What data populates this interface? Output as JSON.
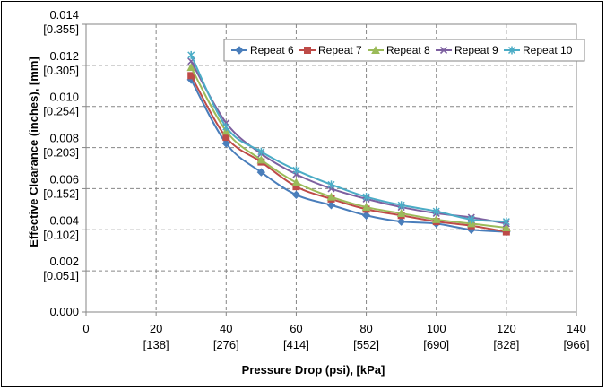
{
  "chart_data": {
    "type": "line",
    "title": "",
    "xlabel": "Pressure Drop (psi), [kPa]",
    "ylabel": "Effective Clearance (inches), [mm]",
    "xlim": [
      0,
      140
    ],
    "ylim": [
      0,
      0.014
    ],
    "grid": true,
    "legend_position": "top-right",
    "x_ticks": [
      {
        "value": 0,
        "label": "0",
        "sublabel": ""
      },
      {
        "value": 20,
        "label": "20",
        "sublabel": "[138]"
      },
      {
        "value": 40,
        "label": "40",
        "sublabel": "[276]"
      },
      {
        "value": 60,
        "label": "60",
        "sublabel": "[414]"
      },
      {
        "value": 80,
        "label": "80",
        "sublabel": "[552]"
      },
      {
        "value": 100,
        "label": "100",
        "sublabel": "[690]"
      },
      {
        "value": 120,
        "label": "120",
        "sublabel": "[828]"
      },
      {
        "value": 140,
        "label": "140",
        "sublabel": "[966]"
      }
    ],
    "y_ticks": [
      {
        "value": 0.0,
        "label": "0.000",
        "sublabel": ""
      },
      {
        "value": 0.002,
        "label": "0.002",
        "sublabel": "[0.051]"
      },
      {
        "value": 0.004,
        "label": "0.004",
        "sublabel": "[0.102]"
      },
      {
        "value": 0.006,
        "label": "0.006",
        "sublabel": "[0.152]"
      },
      {
        "value": 0.008,
        "label": "0.008",
        "sublabel": "[0.203]"
      },
      {
        "value": 0.01,
        "label": "0.010",
        "sublabel": "[0.254]"
      },
      {
        "value": 0.012,
        "label": "0.012",
        "sublabel": "[0.305]"
      },
      {
        "value": 0.014,
        "label": "0.014",
        "sublabel": "[0.355]"
      }
    ],
    "x": [
      30,
      40,
      50,
      60,
      70,
      80,
      90,
      100,
      110,
      120
    ],
    "series": [
      {
        "name": "Repeat 6",
        "color": "#4a7ebb",
        "marker": "diamond",
        "values": [
          0.0113,
          0.0082,
          0.0068,
          0.0057,
          0.0052,
          0.0047,
          0.0044,
          0.0043,
          0.004,
          0.0039
        ]
      },
      {
        "name": "Repeat 7",
        "color": "#be4b48",
        "marker": "square",
        "values": [
          0.0115,
          0.0085,
          0.0073,
          0.0061,
          0.0055,
          0.005,
          0.0047,
          0.0044,
          0.0042,
          0.0039
        ]
      },
      {
        "name": "Repeat 8",
        "color": "#9bbb59",
        "marker": "triangle",
        "values": [
          0.0119,
          0.0088,
          0.0074,
          0.0063,
          0.0056,
          0.0051,
          0.0048,
          0.0045,
          0.0043,
          0.0041
        ]
      },
      {
        "name": "Repeat 9",
        "color": "#7d60a0",
        "marker": "x",
        "values": [
          0.0122,
          0.0092,
          0.0077,
          0.0067,
          0.006,
          0.0055,
          0.0051,
          0.0048,
          0.0046,
          0.0043
        ]
      },
      {
        "name": "Repeat 10",
        "color": "#4bacc6",
        "marker": "star",
        "values": [
          0.0125,
          0.009,
          0.0078,
          0.0069,
          0.0062,
          0.0056,
          0.0052,
          0.0049,
          0.0045,
          0.0044
        ]
      }
    ]
  }
}
